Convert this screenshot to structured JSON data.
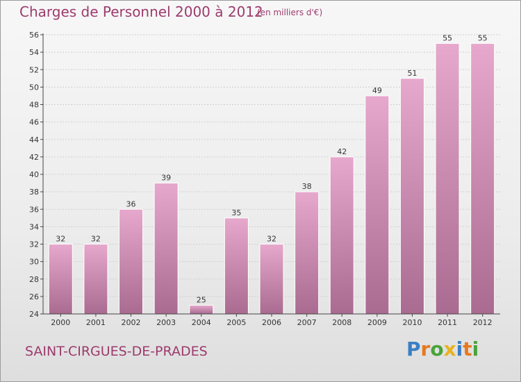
{
  "header": {
    "title": "Charges de Personnel 2000 à 2012",
    "subtitle": "(en milliers d'€)"
  },
  "commune": "SAINT-CIRGUES-DE-PRADES",
  "logo": {
    "letters": [
      {
        "char": "P",
        "color": "#3b7fc4"
      },
      {
        "char": "r",
        "color": "#e8791f"
      },
      {
        "char": "o",
        "color": "#4aa33b"
      },
      {
        "char": "x",
        "color": "#e8b21f"
      },
      {
        "char": "i",
        "color": "#3b7fc4"
      },
      {
        "char": "t",
        "color": "#e8791f"
      },
      {
        "char": "i",
        "color": "#4aa33b"
      }
    ]
  },
  "colors": {
    "bar_light": "#e6a8cc",
    "bar_dark": "#a96b90",
    "text": "#9c3b6d",
    "axis": "#444444"
  },
  "chart_data": {
    "type": "bar",
    "title": "Charges de Personnel 2000 à 2012",
    "subtitle": "(en milliers d'€)",
    "categories": [
      "2000",
      "2001",
      "2002",
      "2003",
      "2004",
      "2005",
      "2006",
      "2007",
      "2008",
      "2009",
      "2010",
      "2011",
      "2012"
    ],
    "values": [
      32,
      32,
      36,
      39,
      25,
      35,
      32,
      38,
      42,
      49,
      51,
      55,
      55
    ],
    "ylim": [
      24,
      56
    ],
    "yticks": [
      24,
      26,
      28,
      30,
      32,
      34,
      36,
      38,
      40,
      42,
      44,
      46,
      48,
      50,
      52,
      54,
      56
    ],
    "grid": true,
    "data_labels": true
  }
}
